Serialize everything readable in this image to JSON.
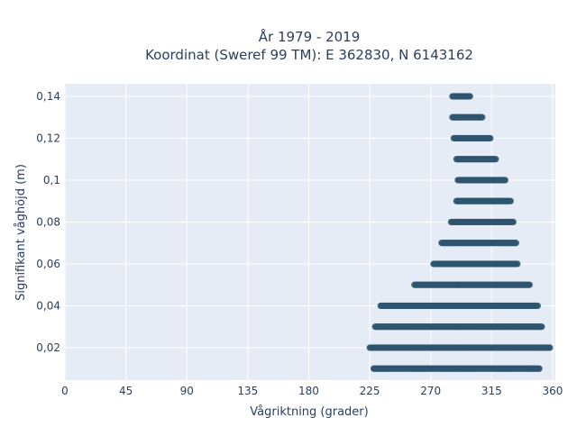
{
  "chart_data": {
    "type": "scatter",
    "title": "År 1979 - 2019",
    "subtitle": "Koordinat (Sweref 99 TM): E 362830, N 6143162",
    "xlabel": "Vågriktning (grader)",
    "ylabel": "Signifikant våghöjd (m)",
    "xlim": [
      0,
      362
    ],
    "ylim": [
      0.0045,
      0.146
    ],
    "x_ticks": [
      0,
      45,
      90,
      135,
      180,
      225,
      270,
      315,
      360
    ],
    "x_tick_labels": [
      "0",
      "45",
      "90",
      "135",
      "180",
      "225",
      "270",
      "315",
      "360"
    ],
    "y_ticks": [
      0.02,
      0.04,
      0.06,
      0.08,
      0.1,
      0.12,
      0.14
    ],
    "y_tick_labels": [
      "0,02",
      "0,04",
      "0,06",
      "0,08",
      "0,1",
      "0,12",
      "0,14"
    ],
    "grid": true,
    "marker_color": "#2f5670",
    "plot_bg": "#e5ecf6",
    "bands": [
      {
        "y": 0.01,
        "x_min": 228,
        "x_max": 350,
        "extra_x": [
          228,
          342,
          346,
          350
        ]
      },
      {
        "y": 0.02,
        "x_min": 225,
        "x_max": 358
      },
      {
        "y": 0.03,
        "x_min": 229,
        "x_max": 352
      },
      {
        "y": 0.04,
        "x_min": 233,
        "x_max": 349
      },
      {
        "y": 0.05,
        "x_min": 258,
        "x_max": 343
      },
      {
        "y": 0.06,
        "x_min": 272,
        "x_max": 334
      },
      {
        "y": 0.07,
        "x_min": 278,
        "x_max": 333
      },
      {
        "y": 0.08,
        "x_min": 285,
        "x_max": 331
      },
      {
        "y": 0.09,
        "x_min": 289,
        "x_max": 329
      },
      {
        "y": 0.1,
        "x_min": 290,
        "x_max": 325
      },
      {
        "y": 0.11,
        "x_min": 289,
        "x_max": 318
      },
      {
        "y": 0.12,
        "x_min": 287,
        "x_max": 314
      },
      {
        "y": 0.13,
        "x_min": 286,
        "x_max": 308
      },
      {
        "y": 0.14,
        "x_min": 286,
        "x_max": 299
      }
    ]
  }
}
